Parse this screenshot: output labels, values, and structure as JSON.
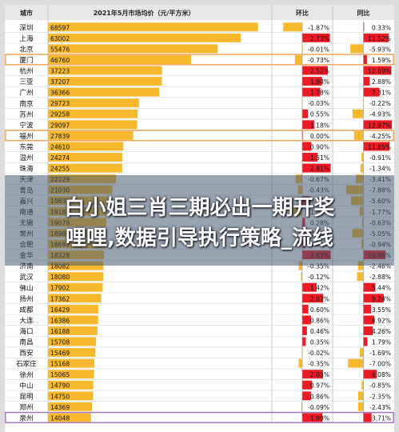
{
  "chart_data": {
    "type": "table",
    "headers": {
      "city": "城市",
      "price": "2021年5月市场均价（元/平方米）",
      "mom": "环比",
      "yoy": "同比"
    },
    "rows": [
      {
        "city": "深圳",
        "price": 68597,
        "mom": "-1.87%",
        "yoy": "0.33%"
      },
      {
        "city": "上海",
        "price": 63002,
        "mom": "2.73%",
        "yoy": "11.52%"
      },
      {
        "city": "北京",
        "price": 55476,
        "mom": "-0.01%",
        "yoy": "-5.93%"
      },
      {
        "city": "厦门",
        "price": 46760,
        "mom": "-0.73%",
        "yoy": "1.59%"
      },
      {
        "city": "杭州",
        "price": 37223,
        "mom": "2.52%",
        "yoy": "12.69%"
      },
      {
        "city": "三亚",
        "price": 37207,
        "mom": "1.94%",
        "yoy": "2.88%"
      },
      {
        "city": "广州",
        "price": 36366,
        "mom": "1.78%",
        "yoy": "7.31%"
      },
      {
        "city": "南京",
        "price": 29723,
        "mom": "-0.03%",
        "yoy": "-0.22%"
      },
      {
        "city": "苏州",
        "price": 29258,
        "mom": "0.55%",
        "yoy": "-4.93%"
      },
      {
        "city": "宁波",
        "price": 29097,
        "mom": "1.18%",
        "yoy": "12.97%"
      },
      {
        "city": "福州",
        "price": 27839,
        "mom": "0.00%",
        "yoy": "-4.25%"
      },
      {
        "city": "东莞",
        "price": 24610,
        "mom": "0.90%",
        "yoy": "11.85%"
      },
      {
        "city": "温州",
        "price": 24274,
        "mom": "1.51%",
        "yoy": "-0.91%"
      },
      {
        "city": "珠海",
        "price": 24255,
        "mom": "2.81%",
        "yoy": "-1.34%"
      },
      {
        "city": "天津",
        "price": 22229,
        "mom": "-0.67%",
        "yoy": "-3.41%"
      },
      {
        "city": "青岛",
        "price": 21030,
        "mom": "-0.43%",
        "yoy": "-7.88%"
      },
      {
        "city": "嘉兴",
        "price": 19835,
        "mom": "0.80%",
        "yoy": "-5.60%"
      },
      {
        "city": "南通",
        "price": 19184,
        "mom": "-1.05%",
        "yoy": "-1.77%"
      },
      {
        "city": "无锡",
        "price": 19079,
        "mom": "0.28%",
        "yoy": "-0.63%"
      },
      {
        "city": "常州",
        "price": 18986,
        "mom": "0.50%",
        "yoy": "-5.05%"
      },
      {
        "city": "合肥",
        "price": 18692,
        "mom": "0.31%",
        "yoy": "-0.94%"
      },
      {
        "city": "金华",
        "price": 18328,
        "mom": "2.82%",
        "yoy": "10.05%"
      },
      {
        "city": "济南",
        "price": 18082,
        "mom": "-0.35%",
        "yoy": "-2.46%"
      },
      {
        "city": "武汉",
        "price": 18080,
        "mom": "-0.12%",
        "yoy": "-2.88%"
      },
      {
        "city": "佛山",
        "price": 17902,
        "mom": "1.42%",
        "yoy": "5.44%"
      },
      {
        "city": "扬州",
        "price": 17362,
        "mom": "2.07%",
        "yoy": "9.24%"
      },
      {
        "city": "成都",
        "price": 16429,
        "mom": "0.60%",
        "yoy": "3.55%"
      },
      {
        "city": "大连",
        "price": 16386,
        "mom": "0.86%",
        "yoy": "4.92%"
      },
      {
        "city": "海口",
        "price": 16188,
        "mom": "0.46%",
        "yoy": "4.26%"
      },
      {
        "city": "南昌",
        "price": 15708,
        "mom": "0.35%",
        "yoy": "1.79%"
      },
      {
        "city": "西安",
        "price": 15469,
        "mom": "-0.02%",
        "yoy": "-1.69%"
      },
      {
        "city": "石家庄",
        "price": 15168,
        "mom": "-0.35%",
        "yoy": "-7.00%"
      },
      {
        "city": "徐州",
        "price": 15065,
        "mom": "2.05%",
        "yoy": "6.08%"
      },
      {
        "city": "中山",
        "price": 14790,
        "mom": "0.97%",
        "yoy": "-0.85%"
      },
      {
        "city": "昆明",
        "price": 14750,
        "mom": "0.86%",
        "yoy": "-2.35%"
      },
      {
        "city": "郑州",
        "price": 14369,
        "mom": "-0.09%",
        "yoy": "-2.43%"
      },
      {
        "city": "泉州",
        "price": 14048,
        "mom": "1.99%",
        "yoy": "3.71%"
      }
    ],
    "highlighted_rows": [
      "厦门",
      "福州",
      "泉州"
    ],
    "price_axis": [
      0,
      70000
    ],
    "mom_axis": [
      -3,
      3
    ],
    "yoy_axis": [
      -14,
      14
    ],
    "colors": {
      "header_bg": "#e8e8e8",
      "price_bar": "#f7b82c",
      "positive_bar": "#ee1b24",
      "negative_bar": "#f7b82c",
      "highlight_border": "#f0a050",
      "highlight_border_last": "#a070c0",
      "grid": "#d9d9d9"
    }
  },
  "overlay": {
    "line1": "白小姐三肖三期必出一期开奖",
    "line2": "哩哩,数据引导执行策略_流线"
  }
}
